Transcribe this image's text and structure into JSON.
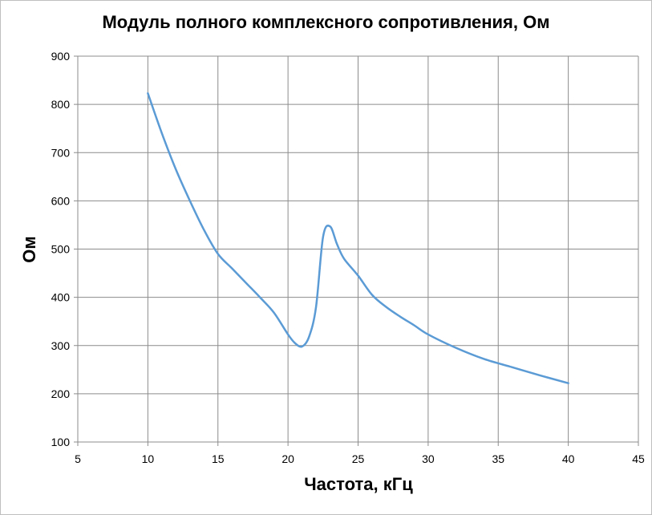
{
  "chart_data": {
    "type": "line",
    "title": "Модуль полного комплексного сопротивления, Ом",
    "xlabel": "Частота, кГц",
    "ylabel": "Ом",
    "xlim": [
      5,
      45
    ],
    "ylim": [
      100,
      900
    ],
    "xticks": [
      5,
      10,
      15,
      20,
      25,
      30,
      35,
      40,
      45
    ],
    "yticks": [
      100,
      200,
      300,
      400,
      500,
      600,
      700,
      800,
      900
    ],
    "grid": true,
    "legend": "none",
    "series": [
      {
        "color": "#5b9bd5",
        "x": [
          10,
          11,
          12,
          13,
          14,
          15,
          16,
          17,
          18,
          19,
          20,
          20.5,
          21,
          21.5,
          22,
          22.5,
          23,
          23.5,
          24,
          25,
          26,
          27,
          28,
          29,
          30,
          32,
          34,
          36,
          38,
          40
        ],
        "y": [
          823,
          740,
          665,
          600,
          540,
          490,
          460,
          430,
          400,
          368,
          323,
          305,
          298,
          318,
          380,
          525,
          547,
          510,
          480,
          445,
          405,
          380,
          360,
          342,
          323,
          295,
          272,
          255,
          238,
          222
        ]
      }
    ]
  }
}
